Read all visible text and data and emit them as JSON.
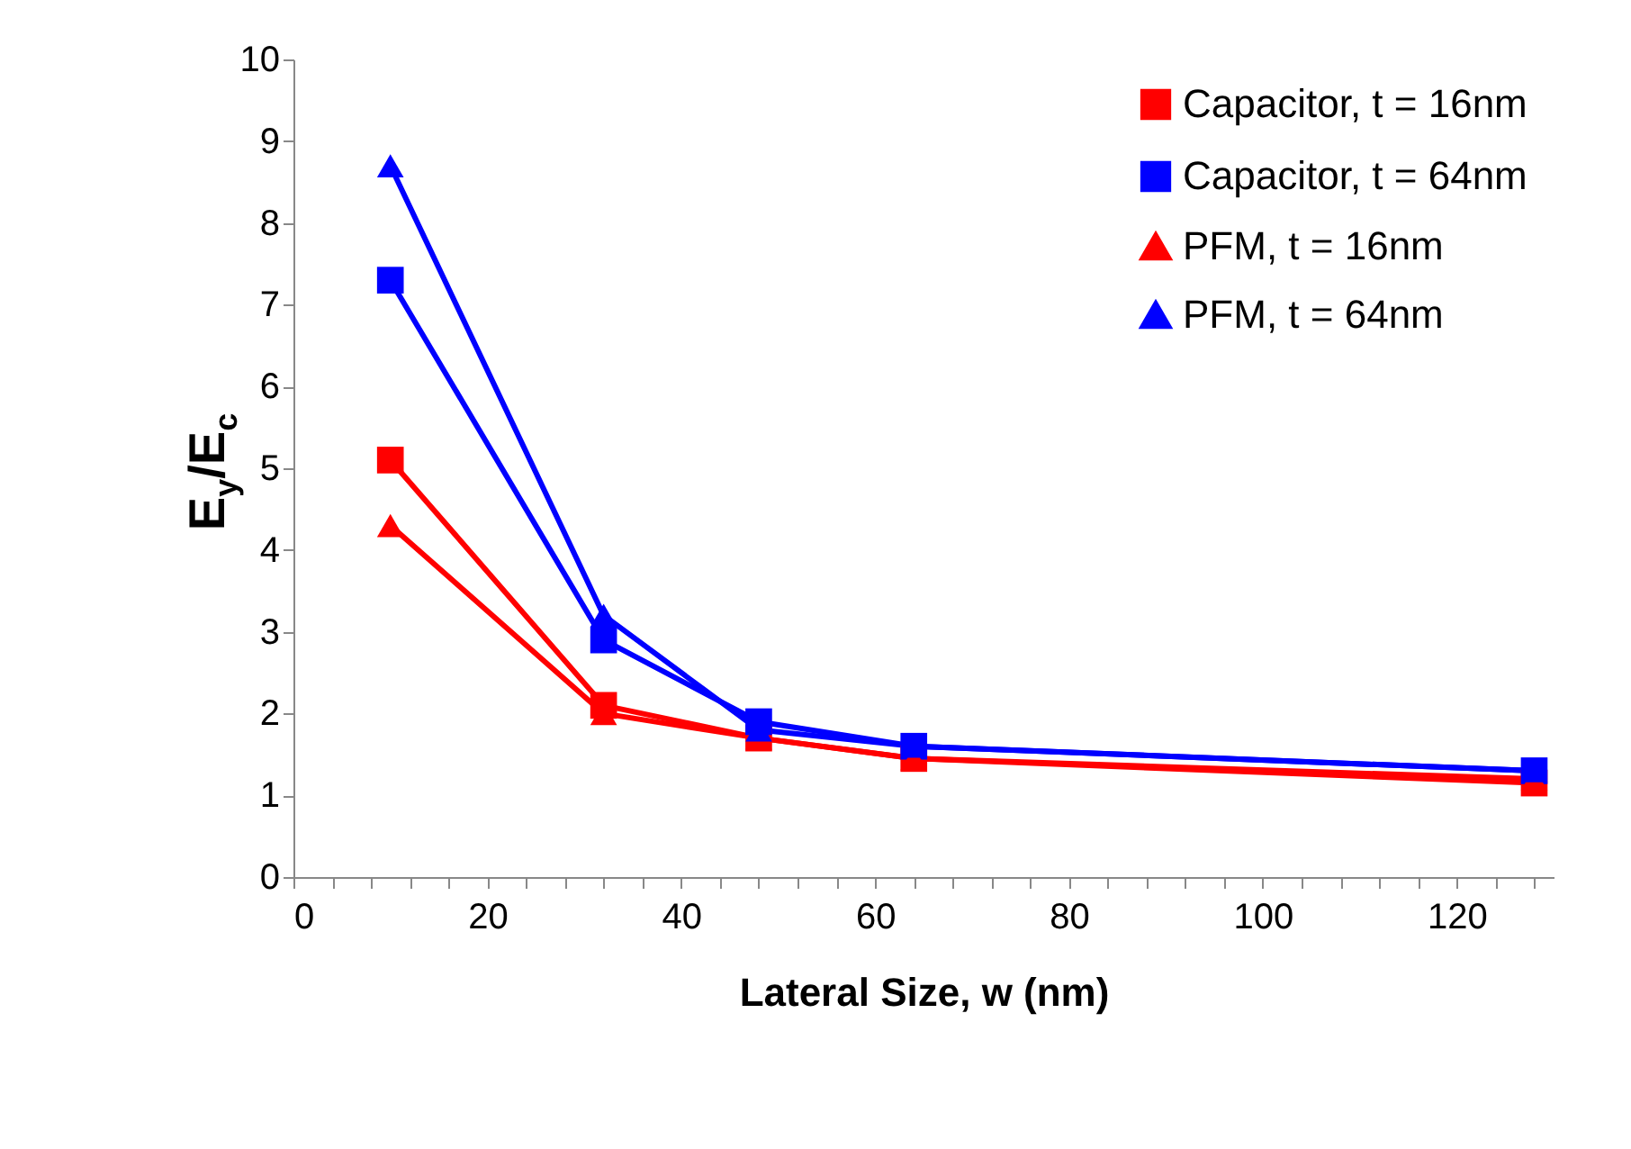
{
  "chart_data": {
    "type": "line",
    "xlabel": "Lateral Size, w (nm)",
    "ylabel": "E$_{y}$/E$_{c}$",
    "x": [
      10,
      32,
      48,
      64,
      128
    ],
    "series": [
      {
        "name": "Capacitor, t = 16nm",
        "color": "#ff0000",
        "marker": "square",
        "values": [
          5.1,
          2.1,
          1.7,
          1.45,
          1.15
        ]
      },
      {
        "name": "Capacitor, t = 64nm",
        "color": "#0000ff",
        "marker": "square",
        "values": [
          7.3,
          2.9,
          1.9,
          1.6,
          1.3
        ]
      },
      {
        "name": "PFM, t = 16nm",
        "color": "#ff0000",
        "marker": "triangle",
        "values": [
          4.3,
          2.0,
          1.7,
          1.45,
          1.2
        ]
      },
      {
        "name": "PFM, t = 64nm",
        "color": "#0000ff",
        "marker": "triangle",
        "values": [
          8.7,
          3.2,
          1.8,
          1.6,
          1.3
        ]
      }
    ],
    "xlim": [
      0,
      130
    ],
    "ylim": [
      0,
      10
    ],
    "xticks": [
      0,
      {
        "value": 4,
        "label": null
      },
      {
        "value": 8,
        "label": null
      },
      {
        "value": 12,
        "label": null
      },
      {
        "value": 16,
        "label": null
      },
      20,
      {
        "value": 24,
        "label": null
      },
      {
        "value": 28,
        "label": null
      },
      {
        "value": 32,
        "label": null
      },
      {
        "value": 36,
        "label": null
      },
      40,
      {
        "value": 44,
        "label": null
      },
      {
        "value": 48,
        "label": null
      },
      {
        "value": 52,
        "label": null
      },
      {
        "value": 56,
        "label": null
      },
      60,
      {
        "value": 64,
        "label": null
      },
      {
        "value": 68,
        "label": null
      },
      {
        "value": 72,
        "label": null
      },
      {
        "value": 76,
        "label": null
      },
      80,
      {
        "value": 84,
        "label": null
      },
      {
        "value": 88,
        "label": null
      },
      {
        "value": 92,
        "label": null
      },
      {
        "value": 96,
        "label": null
      },
      100,
      {
        "value": 104,
        "label": null
      },
      {
        "value": 108,
        "label": null
      },
      {
        "value": 112,
        "label": null
      },
      {
        "value": 116,
        "label": null
      },
      120,
      {
        "value": 124,
        "label": null
      },
      {
        "value": 128,
        "label": null
      }
    ],
    "yticks": [
      0,
      1,
      2,
      3,
      4,
      5,
      6,
      7,
      8,
      9,
      10
    ],
    "grid": false,
    "legend": "top right",
    "line_style": "solid"
  }
}
